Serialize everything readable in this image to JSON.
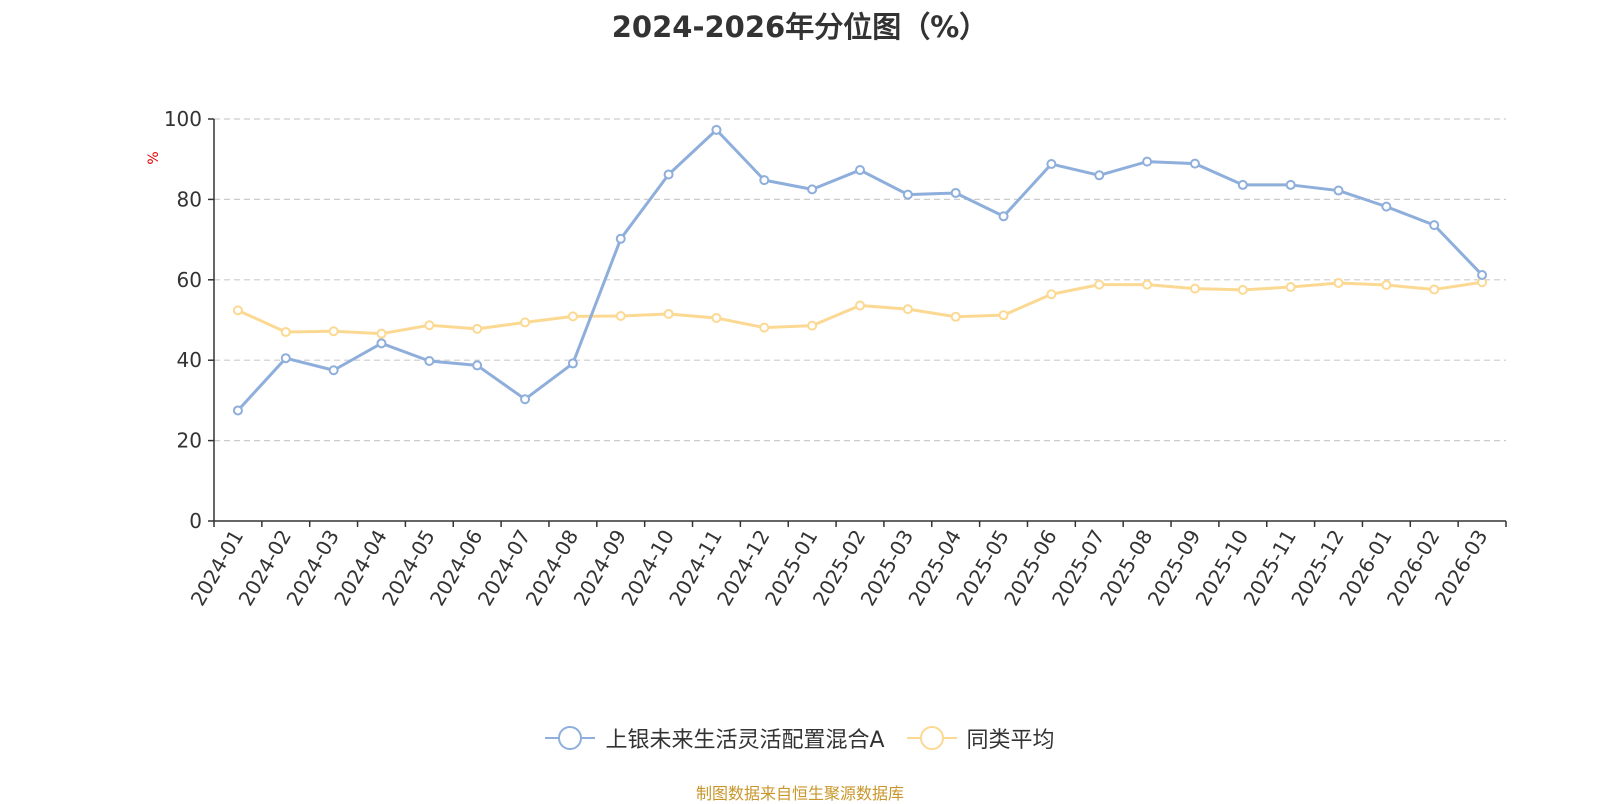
{
  "title": "2024-2026年分位图（%）",
  "source": "制图数据来自恒生聚源数据库",
  "colors": {
    "series_a": "#8eaedb",
    "series_b": "#fcd993",
    "grid": "#cccccc",
    "axis": "#333333",
    "ylabel": "#e00000"
  },
  "chart_data": {
    "type": "line",
    "title": "2024-2026年分位图（%）",
    "xlabel": "",
    "ylabel": "%",
    "ylim": [
      0,
      100
    ],
    "yticks": [
      0,
      20,
      40,
      60,
      80,
      100
    ],
    "grid": true,
    "legend_position": "bottom",
    "categories": [
      "2024-01",
      "2024-02",
      "2024-03",
      "2024-04",
      "2024-05",
      "2024-06",
      "2024-07",
      "2024-08",
      "2024-09",
      "2024-10",
      "2024-11",
      "2024-12",
      "2025-01",
      "2025-02",
      "2025-03",
      "2025-04",
      "2025-05",
      "2025-06",
      "2025-07",
      "2025-08",
      "2025-09",
      "2025-10",
      "2025-11",
      "2025-12",
      "2026-01",
      "2026-02",
      "2026-03"
    ],
    "series": [
      {
        "name": "上银未来生活灵活配置混合A",
        "color": "#8eaedb",
        "values": [
          27.5,
          40.5,
          37.5,
          44.2,
          39.8,
          38.7,
          30.3,
          39.2,
          70.2,
          86.2,
          97.3,
          84.8,
          82.5,
          87.3,
          81.2,
          81.6,
          75.8,
          88.8,
          86.0,
          89.4,
          88.9,
          83.6,
          83.6,
          82.2,
          78.2,
          73.6,
          61.2
        ]
      },
      {
        "name": "同类平均",
        "color": "#fcd993",
        "values": [
          52.4,
          47.0,
          47.2,
          46.6,
          48.7,
          47.8,
          49.4,
          50.9,
          51.0,
          51.5,
          50.5,
          48.1,
          48.6,
          53.6,
          52.7,
          50.8,
          51.2,
          56.4,
          58.8,
          58.8,
          57.8,
          57.5,
          58.2,
          59.2,
          58.7,
          57.6,
          59.4
        ]
      }
    ]
  }
}
